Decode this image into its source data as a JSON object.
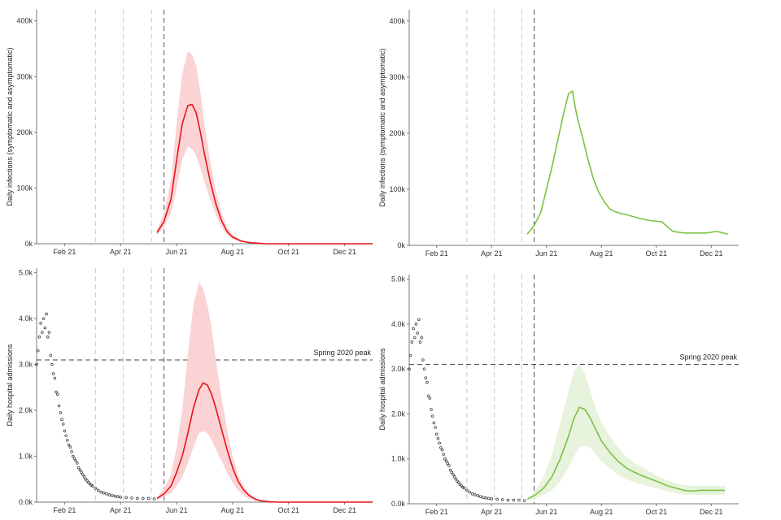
{
  "colors": {
    "red": "#e8141a",
    "red_band": "#fbd3d4",
    "green": "#7cc242",
    "green_band": "#e7f3dc",
    "observed": "#444444",
    "vline_light": "#c8c8c8",
    "vline_dark": "#555555"
  },
  "chart_data": [
    {
      "id": "infections_red",
      "type": "line",
      "ylabel": "Daily infections (symptomatic and asymptomatic)",
      "ylim": [
        0,
        420
      ],
      "yticks": [
        0,
        100,
        200,
        300,
        400
      ],
      "ytick_labels": [
        "0k",
        "100k",
        "200k",
        "300k",
        "400k"
      ],
      "xlim": [
        0,
        12
      ],
      "xticks": [
        1,
        3,
        5,
        7,
        9,
        11
      ],
      "xtick_labels": [
        "Feb 21",
        "Apr 21",
        "Jun 21",
        "Aug 21",
        "Oct 21",
        "Dec 21"
      ],
      "grid": false,
      "color_key": "red",
      "band_key": "red_band",
      "vlines_light": [
        2.1,
        3.1,
        4.1
      ],
      "vline_dashed": 4.55,
      "series": [
        {
          "x": [
            4.3,
            4.55,
            4.8,
            5.0,
            5.2,
            5.4,
            5.55,
            5.7,
            5.85,
            6.0,
            6.2,
            6.4,
            6.6,
            6.8,
            7.0,
            7.3,
            7.6,
            7.9,
            8.2,
            8.6,
            9.0,
            9.5,
            10,
            11,
            12
          ],
          "y": [
            20,
            40,
            80,
            150,
            215,
            248,
            250,
            235,
            200,
            160,
            112,
            72,
            42,
            22,
            12,
            5,
            2,
            1,
            0,
            0,
            0,
            0,
            0,
            0,
            0
          ]
        }
      ],
      "band": {
        "x": [
          4.3,
          4.55,
          4.8,
          5.0,
          5.2,
          5.4,
          5.55,
          5.7,
          5.85,
          6.0,
          6.2,
          6.4,
          6.6,
          6.8,
          7.0,
          7.3,
          7.6,
          7.9,
          8.2,
          8.6,
          9.0
        ],
        "upper": [
          25,
          55,
          115,
          215,
          305,
          345,
          340,
          320,
          272,
          212,
          148,
          95,
          56,
          30,
          16,
          7,
          3,
          1,
          0,
          0,
          0
        ],
        "lower": [
          15,
          30,
          55,
          100,
          150,
          175,
          170,
          158,
          135,
          110,
          80,
          52,
          30,
          16,
          8,
          3,
          1,
          0,
          0,
          0,
          0
        ]
      }
    },
    {
      "id": "infections_green",
      "type": "line",
      "ylabel": "Daily infections (symptomatic and asymptomatic)",
      "ylim": [
        0,
        420
      ],
      "yticks": [
        0,
        100,
        200,
        300,
        400
      ],
      "ytick_labels": [
        "0k",
        "100k",
        "200k",
        "300k",
        "400k"
      ],
      "xlim": [
        0,
        12
      ],
      "xticks": [
        1,
        3,
        5,
        7,
        9,
        11
      ],
      "xtick_labels": [
        "Feb 21",
        "Apr 21",
        "Jun 21",
        "Aug 21",
        "Oct 21",
        "Dec 21"
      ],
      "grid": false,
      "color_key": "green",
      "vlines_light": [
        2.1,
        3.1,
        4.1
      ],
      "vline_dashed": 4.55,
      "series": [
        {
          "x": [
            4.3,
            4.55,
            4.8,
            5.0,
            5.2,
            5.4,
            5.6,
            5.8,
            5.95,
            6.05,
            6.15,
            6.3,
            6.5,
            6.7,
            6.9,
            7.1,
            7.3,
            7.5,
            7.7,
            7.9,
            8.1,
            8.4,
            8.8,
            9.2,
            9.6,
            10,
            10.4,
            10.8,
            11.2,
            11.6
          ],
          "y": [
            20,
            35,
            60,
            100,
            140,
            185,
            230,
            270,
            275,
            245,
            222,
            195,
            155,
            120,
            95,
            78,
            65,
            60,
            57,
            55,
            52,
            48,
            44,
            42,
            25,
            22,
            22,
            22,
            25,
            20
          ]
        }
      ]
    },
    {
      "id": "admissions_red",
      "type": "line",
      "ylabel": "Daily hospital admissions",
      "ylim": [
        0,
        5.1
      ],
      "yticks": [
        0,
        1,
        2,
        3,
        4,
        5
      ],
      "ytick_labels": [
        "0.0k",
        "1.0k",
        "2.0k",
        "3.0k",
        "4.0k",
        "5.0k"
      ],
      "xlim": [
        0,
        12
      ],
      "xticks": [
        1,
        3,
        5,
        7,
        9,
        11
      ],
      "xtick_labels": [
        "Feb 21",
        "Apr 21",
        "Jun 21",
        "Aug 21",
        "Oct 21",
        "Dec 21"
      ],
      "grid": false,
      "color_key": "red",
      "band_key": "red_band",
      "vlines_light": [
        2.1,
        3.1,
        4.1
      ],
      "vline_dashed": 4.55,
      "hline": {
        "y": 3.1,
        "label": "Spring 2020 peak"
      },
      "series": [
        {
          "x": [
            4.3,
            4.55,
            4.8,
            5.0,
            5.2,
            5.4,
            5.6,
            5.8,
            5.95,
            6.1,
            6.25,
            6.4,
            6.6,
            6.8,
            7.0,
            7.2,
            7.4,
            7.6,
            7.8,
            8.0,
            8.3,
            8.6,
            9.0,
            9.5,
            10,
            11,
            12
          ],
          "y": [
            0.08,
            0.18,
            0.35,
            0.65,
            1.0,
            1.5,
            2.05,
            2.45,
            2.6,
            2.55,
            2.35,
            2.05,
            1.6,
            1.15,
            0.75,
            0.45,
            0.26,
            0.14,
            0.07,
            0.03,
            0.01,
            0,
            0,
            0,
            0,
            0,
            0
          ]
        }
      ],
      "band": {
        "x": [
          4.3,
          4.55,
          4.8,
          5.0,
          5.2,
          5.4,
          5.6,
          5.8,
          5.95,
          6.1,
          6.25,
          6.4,
          6.6,
          6.8,
          7.0,
          7.2,
          7.4,
          7.6,
          7.8,
          8.0,
          8.3,
          8.6,
          9.0
        ],
        "upper": [
          0.1,
          0.3,
          0.6,
          1.2,
          2.0,
          3.2,
          4.3,
          4.8,
          4.65,
          4.3,
          3.8,
          3.1,
          2.3,
          1.6,
          1.0,
          0.6,
          0.35,
          0.18,
          0.09,
          0.04,
          0.01,
          0,
          0
        ],
        "lower": [
          0.05,
          0.12,
          0.2,
          0.35,
          0.55,
          0.85,
          1.2,
          1.5,
          1.55,
          1.5,
          1.35,
          1.15,
          0.9,
          0.65,
          0.42,
          0.25,
          0.14,
          0.07,
          0.03,
          0.01,
          0,
          0,
          0
        ]
      },
      "observed": {
        "x": [
          0.0,
          0.05,
          0.1,
          0.15,
          0.2,
          0.25,
          0.3,
          0.35,
          0.4,
          0.45,
          0.5,
          0.55,
          0.6,
          0.65,
          0.7,
          0.75,
          0.8,
          0.85,
          0.9,
          0.95,
          1.0,
          1.05,
          1.1,
          1.15,
          1.2,
          1.25,
          1.3,
          1.35,
          1.4,
          1.45,
          1.5,
          1.55,
          1.6,
          1.65,
          1.7,
          1.75,
          1.8,
          1.85,
          1.9,
          1.95,
          2.0,
          2.1,
          2.2,
          2.3,
          2.4,
          2.5,
          2.6,
          2.7,
          2.8,
          2.9,
          3.0,
          3.2,
          3.4,
          3.6,
          3.8,
          4.0,
          4.2
        ],
        "y": [
          3.0,
          3.3,
          3.6,
          3.9,
          3.7,
          4.0,
          3.8,
          4.1,
          3.6,
          3.7,
          3.2,
          3.0,
          2.8,
          2.7,
          2.4,
          2.35,
          2.1,
          1.95,
          1.8,
          1.7,
          1.55,
          1.45,
          1.35,
          1.25,
          1.2,
          1.1,
          1.0,
          0.95,
          0.9,
          0.85,
          0.75,
          0.7,
          0.65,
          0.6,
          0.55,
          0.5,
          0.47,
          0.43,
          0.4,
          0.37,
          0.35,
          0.3,
          0.26,
          0.22,
          0.2,
          0.18,
          0.16,
          0.14,
          0.13,
          0.12,
          0.11,
          0.1,
          0.09,
          0.08,
          0.08,
          0.08,
          0.07
        ]
      }
    },
    {
      "id": "admissions_green",
      "type": "line",
      "ylabel": "Daily hospital admissions",
      "ylim": [
        0,
        5.1
      ],
      "yticks": [
        0,
        1,
        2,
        3,
        4,
        5
      ],
      "ytick_labels": [
        "0.0k",
        "1.0k",
        "2.0k",
        "3.0k",
        "4.0k",
        "5.0k"
      ],
      "xlim": [
        0,
        12
      ],
      "xticks": [
        1,
        3,
        5,
        7,
        9,
        11
      ],
      "xtick_labels": [
        "Feb 21",
        "Apr 21",
        "Jun 21",
        "Aug 21",
        "Oct 21",
        "Dec 21"
      ],
      "grid": false,
      "color_key": "green",
      "band_key": "green_band",
      "vlines_light": [
        2.1,
        3.1,
        4.1
      ],
      "vline_dashed": 4.55,
      "hline": {
        "y": 3.1,
        "label": "Spring 2020 peak"
      },
      "series": [
        {
          "x": [
            4.3,
            4.6,
            4.9,
            5.2,
            5.5,
            5.8,
            6.0,
            6.2,
            6.4,
            6.6,
            6.8,
            7.0,
            7.3,
            7.6,
            7.9,
            8.2,
            8.5,
            8.8,
            9.1,
            9.4,
            9.7,
            10.0,
            10.3,
            10.6,
            10.9,
            11.2,
            11.5
          ],
          "y": [
            0.1,
            0.2,
            0.35,
            0.6,
            1.0,
            1.5,
            1.9,
            2.15,
            2.1,
            1.9,
            1.65,
            1.4,
            1.15,
            0.95,
            0.8,
            0.7,
            0.62,
            0.55,
            0.48,
            0.4,
            0.35,
            0.3,
            0.28,
            0.3,
            0.3,
            0.3,
            0.3
          ]
        }
      ],
      "band": {
        "x": [
          4.3,
          4.6,
          4.9,
          5.2,
          5.5,
          5.8,
          6.0,
          6.2,
          6.4,
          6.6,
          6.8,
          7.0,
          7.3,
          7.6,
          7.9,
          8.2,
          8.5,
          8.8,
          9.1,
          9.4,
          9.7,
          10.0,
          10.3,
          10.6,
          10.9,
          11.2,
          11.5
        ],
        "upper": [
          0.12,
          0.3,
          0.6,
          1.1,
          1.8,
          2.5,
          2.95,
          3.1,
          2.9,
          2.5,
          2.1,
          1.8,
          1.5,
          1.25,
          1.05,
          0.9,
          0.8,
          0.7,
          0.6,
          0.52,
          0.46,
          0.42,
          0.4,
          0.4,
          0.4,
          0.4,
          0.4
        ],
        "lower": [
          0.08,
          0.12,
          0.2,
          0.3,
          0.5,
          0.8,
          1.05,
          1.25,
          1.3,
          1.25,
          1.1,
          0.95,
          0.8,
          0.65,
          0.55,
          0.48,
          0.42,
          0.38,
          0.33,
          0.28,
          0.24,
          0.2,
          0.2,
          0.2,
          0.2,
          0.2,
          0.2
        ]
      },
      "observed": {
        "x": [
          0.0,
          0.05,
          0.1,
          0.15,
          0.2,
          0.25,
          0.3,
          0.35,
          0.4,
          0.45,
          0.5,
          0.55,
          0.6,
          0.65,
          0.7,
          0.75,
          0.8,
          0.85,
          0.9,
          0.95,
          1.0,
          1.05,
          1.1,
          1.15,
          1.2,
          1.25,
          1.3,
          1.35,
          1.4,
          1.45,
          1.5,
          1.55,
          1.6,
          1.65,
          1.7,
          1.75,
          1.8,
          1.85,
          1.9,
          1.95,
          2.0,
          2.1,
          2.2,
          2.3,
          2.4,
          2.5,
          2.6,
          2.7,
          2.8,
          2.9,
          3.0,
          3.2,
          3.4,
          3.6,
          3.8,
          4.0,
          4.2
        ],
        "y": [
          3.0,
          3.3,
          3.6,
          3.9,
          3.7,
          4.0,
          3.8,
          4.1,
          3.6,
          3.7,
          3.2,
          3.0,
          2.8,
          2.7,
          2.4,
          2.35,
          2.1,
          1.95,
          1.8,
          1.7,
          1.55,
          1.45,
          1.35,
          1.25,
          1.2,
          1.1,
          1.0,
          0.95,
          0.9,
          0.85,
          0.75,
          0.7,
          0.65,
          0.6,
          0.55,
          0.5,
          0.47,
          0.43,
          0.4,
          0.37,
          0.35,
          0.3,
          0.26,
          0.22,
          0.2,
          0.18,
          0.16,
          0.14,
          0.13,
          0.12,
          0.11,
          0.1,
          0.09,
          0.08,
          0.08,
          0.08,
          0.07
        ]
      }
    }
  ]
}
